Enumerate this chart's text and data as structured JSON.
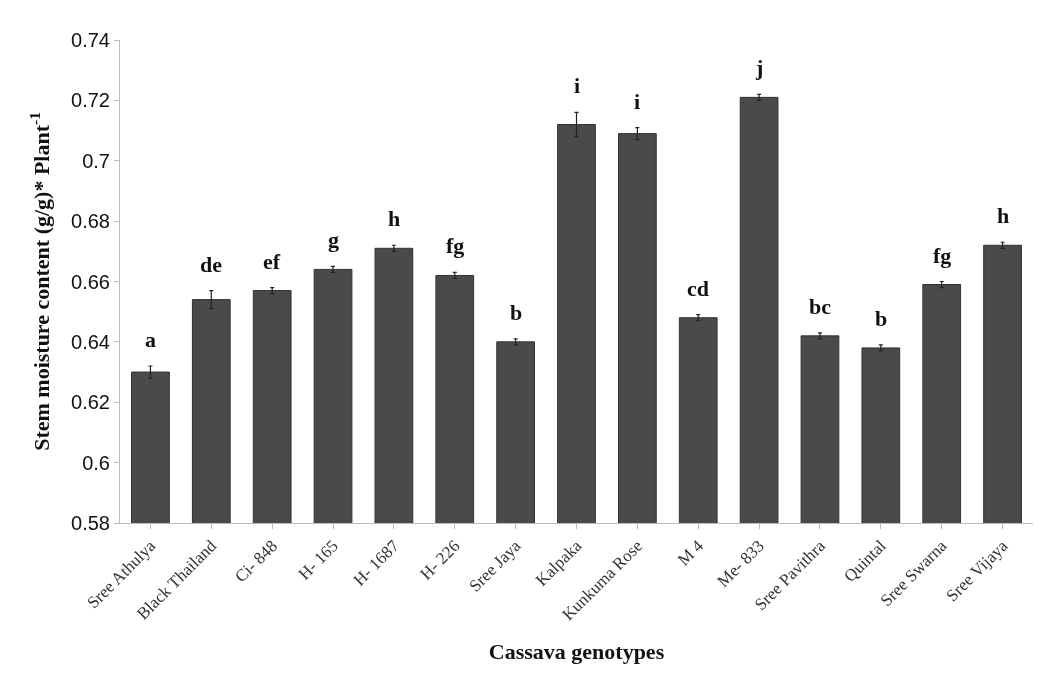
{
  "chart_data": {
    "type": "bar",
    "xlabel": "Cassava genotypes",
    "ylabel": "Stem moisture content (g/g)* Plant$^{-1}$",
    "categories": [
      "Sree Athulya",
      "Black Thailand",
      "Ci- 848",
      "H- 165",
      "H- 1687",
      "H- 226",
      "Sree Jaya",
      "Kalpaka",
      "Kunkuma Rose",
      "M 4",
      "Me- 833",
      "Sree Pavithra",
      "Quintal",
      "Sree Swarna",
      "Sree Vijaya"
    ],
    "values": [
      0.63,
      0.654,
      0.657,
      0.664,
      0.671,
      0.662,
      0.64,
      0.712,
      0.709,
      0.648,
      0.721,
      0.642,
      0.638,
      0.659,
      0.672
    ],
    "errors": [
      0.002,
      0.003,
      0.001,
      0.001,
      0.001,
      0.001,
      0.001,
      0.004,
      0.002,
      0.001,
      0.001,
      0.001,
      0.001,
      0.001,
      0.001
    ],
    "value_labels": [
      "a",
      "de",
      "ef",
      "g",
      "h",
      "fg",
      "b",
      "i",
      "i",
      "cd",
      "j",
      "bc",
      "b",
      "fg",
      "h"
    ],
    "color": "#4a4a4a",
    "ylim": [
      0.58,
      0.74
    ],
    "yticks": [
      0.58,
      0.6,
      0.62,
      0.64,
      0.66,
      0.68,
      0.7,
      0.72,
      0.74
    ],
    "legend": false
  }
}
